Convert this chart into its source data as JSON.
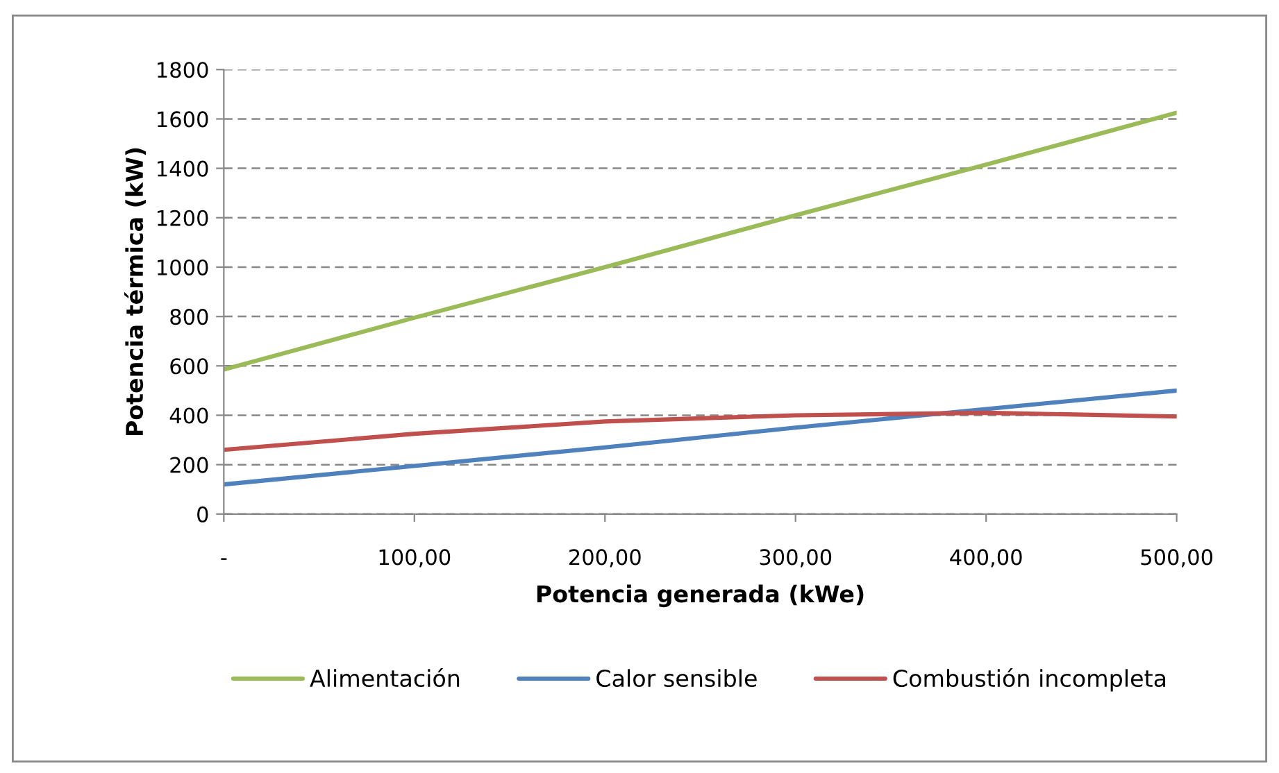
{
  "chart_data": {
    "type": "line",
    "xlabel": "Potencia generada (kWe)",
    "ylabel": "Potencia térmica (kW)",
    "xlim": [
      0,
      500
    ],
    "xticks": [
      {
        "value": 0,
        "label": "-"
      },
      {
        "value": 100,
        "label": "100,00"
      },
      {
        "value": 200,
        "label": "200,00"
      },
      {
        "value": 300,
        "label": "300,00"
      },
      {
        "value": 400,
        "label": "400,00"
      },
      {
        "value": 500,
        "label": "500,00"
      }
    ],
    "ylim": [
      0,
      1800
    ],
    "yticks": [
      0,
      200,
      400,
      600,
      800,
      1000,
      1200,
      1400,
      1600,
      1800
    ],
    "grid": "y",
    "legend": "bottom",
    "x": [
      0,
      100,
      200,
      300,
      400,
      500
    ],
    "series": [
      {
        "name": "Alimentación",
        "color": "#9bbb59",
        "values": [
          585,
          795,
          1000,
          1210,
          1415,
          1625
        ]
      },
      {
        "name": "Calor sensible",
        "color": "#4f81bd",
        "values": [
          120,
          195,
          270,
          350,
          425,
          500
        ]
      },
      {
        "name": "Combustión incompleta",
        "color": "#c0504d",
        "values": [
          260,
          325,
          375,
          400,
          410,
          395
        ]
      }
    ]
  }
}
